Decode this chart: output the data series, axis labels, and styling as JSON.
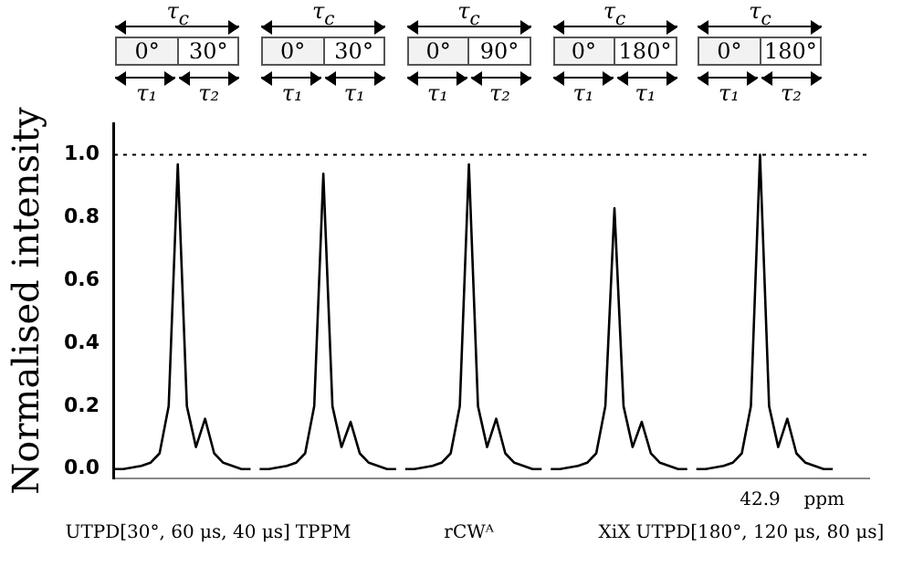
{
  "chart_data": {
    "type": "line",
    "ylabel": "Normalised intensity",
    "categories": [
      null,
      null,
      null,
      null,
      null,
      null,
      null,
      "UTPD[30°, 60 μs, 40 μs]",
      null,
      null,
      null,
      null,
      null,
      null,
      null,
      null,
      null,
      null,
      null,
      null,
      null,
      null,
      null,
      "TPPM",
      null,
      null,
      null,
      null,
      null,
      null,
      null,
      null,
      null,
      null,
      null,
      null,
      null,
      null,
      null,
      "rCWᴬ",
      null,
      null,
      null,
      null,
      null,
      null,
      null,
      null,
      null,
      null,
      null,
      null,
      null,
      null,
      null,
      "XiX",
      null,
      null,
      null,
      null,
      null,
      null,
      null,
      null,
      null,
      null,
      null,
      null,
      null,
      null,
      null,
      "UTPD[180°, 120 μs, 80 μs]",
      null,
      null,
      null,
      null,
      null,
      null,
      null,
      null,
      null,
      null,
      null,
      null
    ],
    "series": [
      {
        "color": "#000000",
        "values": [
          0,
          0,
          0.005,
          0.01,
          0.02,
          0.05,
          0.2,
          0.97,
          0.2,
          0.07,
          0.16,
          0.05,
          0.02,
          0.01,
          0,
          0,
          null,
          null,
          null,
          null,
          null,
          null,
          null,
          null,
          null,
          null,
          null,
          null,
          null,
          null,
          null,
          null,
          null,
          null,
          null,
          null,
          null,
          null,
          null,
          null,
          null,
          null,
          null,
          null,
          null,
          null,
          null,
          null,
          null,
          null,
          null,
          null,
          null,
          null,
          null,
          null,
          null,
          null,
          null,
          null,
          null,
          null,
          null,
          null,
          null,
          null,
          null,
          null,
          null,
          null,
          null,
          null,
          null,
          null,
          null,
          null,
          null,
          null,
          null,
          null,
          null,
          null,
          null,
          null
        ]
      },
      {
        "color": "#000000",
        "values": [
          null,
          null,
          null,
          null,
          null,
          null,
          null,
          null,
          null,
          null,
          null,
          null,
          null,
          null,
          null,
          null,
          0,
          0,
          0.005,
          0.01,
          0.02,
          0.05,
          0.2,
          0.94,
          0.2,
          0.07,
          0.15,
          0.05,
          0.02,
          0.01,
          0,
          0,
          null,
          null,
          null,
          null,
          null,
          null,
          null,
          null,
          null,
          null,
          null,
          null,
          null,
          null,
          null,
          null,
          null,
          null,
          null,
          null,
          null,
          null,
          null,
          null,
          null,
          null,
          null,
          null,
          null,
          null,
          null,
          null,
          null,
          null,
          null,
          null,
          null,
          null,
          null,
          null,
          null,
          null,
          null,
          null,
          null,
          null,
          null,
          null,
          null,
          null,
          null,
          null
        ]
      },
      {
        "color": "#000000",
        "values": [
          null,
          null,
          null,
          null,
          null,
          null,
          null,
          null,
          null,
          null,
          null,
          null,
          null,
          null,
          null,
          null,
          null,
          null,
          null,
          null,
          null,
          null,
          null,
          null,
          null,
          null,
          null,
          null,
          null,
          null,
          null,
          null,
          0,
          0,
          0.005,
          0.01,
          0.02,
          0.05,
          0.2,
          0.97,
          0.2,
          0.07,
          0.16,
          0.05,
          0.02,
          0.01,
          0,
          0,
          null,
          null,
          null,
          null,
          null,
          null,
          null,
          null,
          null,
          null,
          null,
          null,
          null,
          null,
          null,
          null,
          null,
          null,
          null,
          null,
          null,
          null,
          null,
          null,
          null,
          null,
          null,
          null,
          null,
          null,
          null,
          null,
          null,
          null,
          null,
          null
        ]
      },
      {
        "color": "#000000",
        "values": [
          null,
          null,
          null,
          null,
          null,
          null,
          null,
          null,
          null,
          null,
          null,
          null,
          null,
          null,
          null,
          null,
          null,
          null,
          null,
          null,
          null,
          null,
          null,
          null,
          null,
          null,
          null,
          null,
          null,
          null,
          null,
          null,
          null,
          null,
          null,
          null,
          null,
          null,
          null,
          null,
          null,
          null,
          null,
          null,
          null,
          null,
          null,
          null,
          0,
          0,
          0.005,
          0.01,
          0.02,
          0.05,
          0.2,
          0.83,
          0.2,
          0.07,
          0.15,
          0.05,
          0.02,
          0.01,
          0,
          0,
          null,
          null,
          null,
          null,
          null,
          null,
          null,
          null,
          null,
          null,
          null,
          null,
          null,
          null,
          null,
          null,
          null,
          null,
          null,
          null
        ]
      },
      {
        "color": "#000000",
        "values": [
          null,
          null,
          null,
          null,
          null,
          null,
          null,
          null,
          null,
          null,
          null,
          null,
          null,
          null,
          null,
          null,
          null,
          null,
          null,
          null,
          null,
          null,
          null,
          null,
          null,
          null,
          null,
          null,
          null,
          null,
          null,
          null,
          null,
          null,
          null,
          null,
          null,
          null,
          null,
          null,
          null,
          null,
          null,
          null,
          null,
          null,
          null,
          null,
          null,
          null,
          null,
          null,
          null,
          null,
          null,
          null,
          null,
          null,
          null,
          null,
          null,
          null,
          null,
          null,
          0,
          0,
          0.005,
          0.01,
          0.02,
          0.05,
          0.2,
          1.0,
          0.2,
          0.07,
          0.16,
          0.05,
          0.02,
          0.01,
          0,
          0,
          null,
          null,
          null,
          null
        ]
      }
    ],
    "ylim": [
      -0.03,
      1.1
    ],
    "yticks": [
      {
        "value": 0,
        "label": "0.0"
      },
      0.2,
      0.4,
      0.6,
      0.8,
      {
        "value": 1,
        "label": "1.0"
      }
    ],
    "ref_lines": [
      {
        "axis": "y",
        "value": 1,
        "line_style": "dotted"
      }
    ],
    "grid": false,
    "legend": false,
    "marker": "none",
    "line_style": "solid",
    "annotations": [
      "τ$_{c}$",
      "0°",
      "30°",
      "τ₁",
      "τ₂",
      "τ$_{c}$",
      "0°",
      "30°",
      "τ₁",
      "τ₁",
      "τ$_{c}$",
      "0°",
      "90°",
      "τ₁",
      "τ₂",
      "τ$_{c}$",
      "0°",
      "180°",
      "τ₁",
      "τ₁",
      "τ$_{c}$",
      "0°",
      "180°",
      "τ₁",
      "τ₂",
      "42.9",
      "ppm"
    ]
  }
}
